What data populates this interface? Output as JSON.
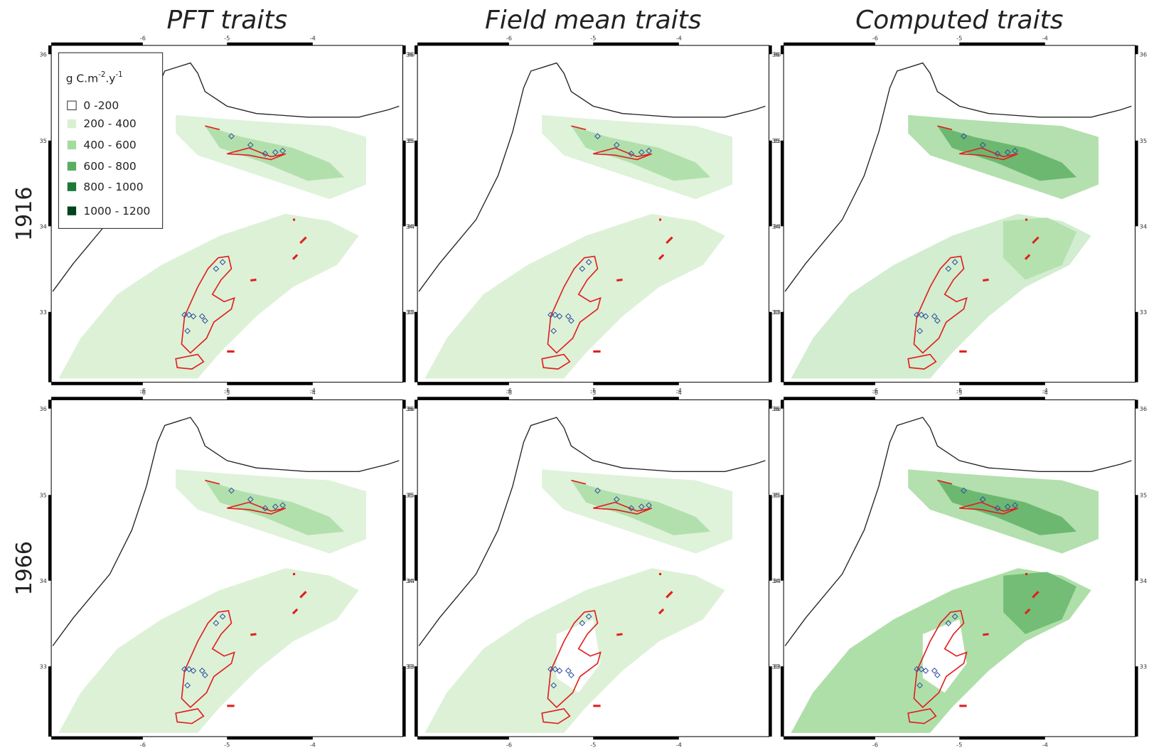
{
  "columns": [
    "PFT traits",
    "Field mean traits",
    "Computed traits"
  ],
  "rows": [
    "1916",
    "1966"
  ],
  "longitude_ticks": [
    "-6",
    "-5",
    "-4"
  ],
  "latitude_ticks": [
    "36",
    "35",
    "34",
    "33"
  ],
  "legend": {
    "title_parts": [
      "g C.m",
      "-2",
      ".y",
      "-1"
    ],
    "items": [
      {
        "label": "0 -200",
        "color": "#ffffff"
      },
      {
        "label": "200 - 400",
        "color": "#d9f0d3"
      },
      {
        "label": "400 - 600",
        "color": "#a6dba0"
      },
      {
        "label": "600 - 800",
        "color": "#5aae61"
      },
      {
        "label": "800 - 1000",
        "color": "#1b7837"
      },
      {
        "label": "1000 - 1200",
        "color": "#00441b"
      }
    ]
  }
}
